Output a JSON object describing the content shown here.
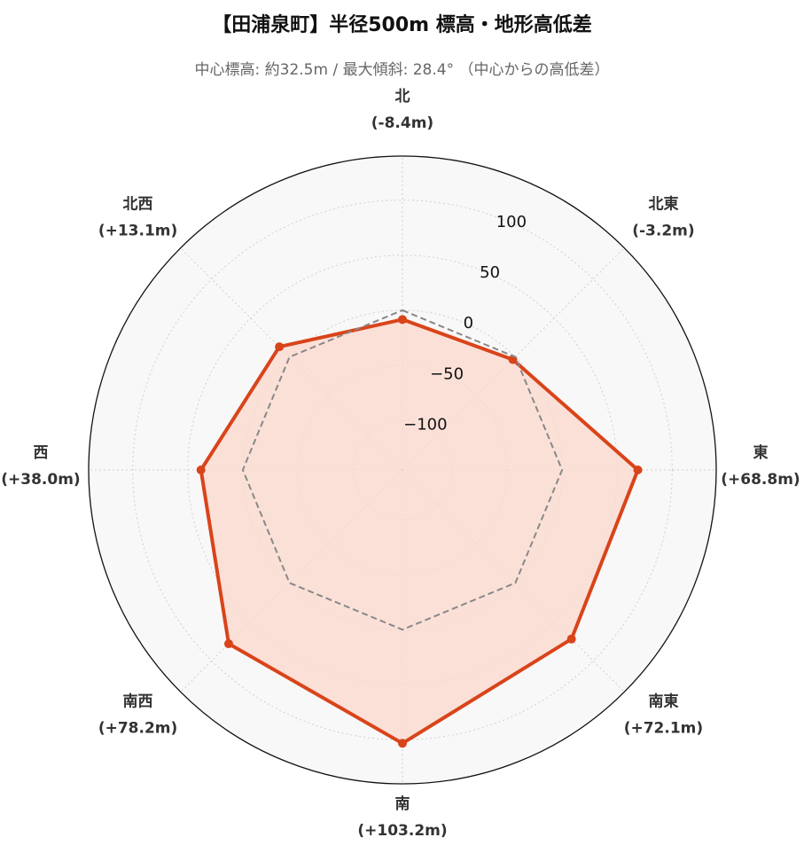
{
  "title": "【田浦泉町】半径500m 標高・地形高低差",
  "subtitle": "中心標高: 約32.5m / 最大傾斜: 28.4° （中心からの高低差）",
  "chart_data": {
    "type": "radar",
    "axes": [
      {
        "name": "北",
        "delta_label": "(-8.4m)"
      },
      {
        "name": "北東",
        "delta_label": "(-3.2m)"
      },
      {
        "name": "東",
        "delta_label": "(+68.8m)"
      },
      {
        "name": "南東",
        "delta_label": "(+72.1m)"
      },
      {
        "name": "南",
        "delta_label": "(+103.2m)"
      },
      {
        "name": "南西",
        "delta_label": "(+78.2m)"
      },
      {
        "name": "西",
        "delta_label": "(+38.0m)"
      },
      {
        "name": "北西",
        "delta_label": "(+13.1m)"
      }
    ],
    "r_ticks": [
      -100,
      -50,
      0,
      50,
      100
    ],
    "r_tick_labels": [
      "−100",
      "−50",
      "0",
      "50",
      "100"
    ],
    "r_range": [
      -145,
      140
    ],
    "series": [
      {
        "values": [
          -8.4,
          -3.2,
          68.8,
          72.1,
          103.2,
          78.2,
          38.0,
          13.1
        ],
        "color": "#d9441a",
        "fill": "#fbd9cf",
        "style": "solid",
        "markers": true
      },
      {
        "values": [
          0,
          0,
          0,
          0,
          0,
          0,
          0,
          0
        ],
        "color": "#888888",
        "style": "dashed",
        "markers": false
      }
    ],
    "grid": true,
    "background": "#f8f8f8"
  }
}
